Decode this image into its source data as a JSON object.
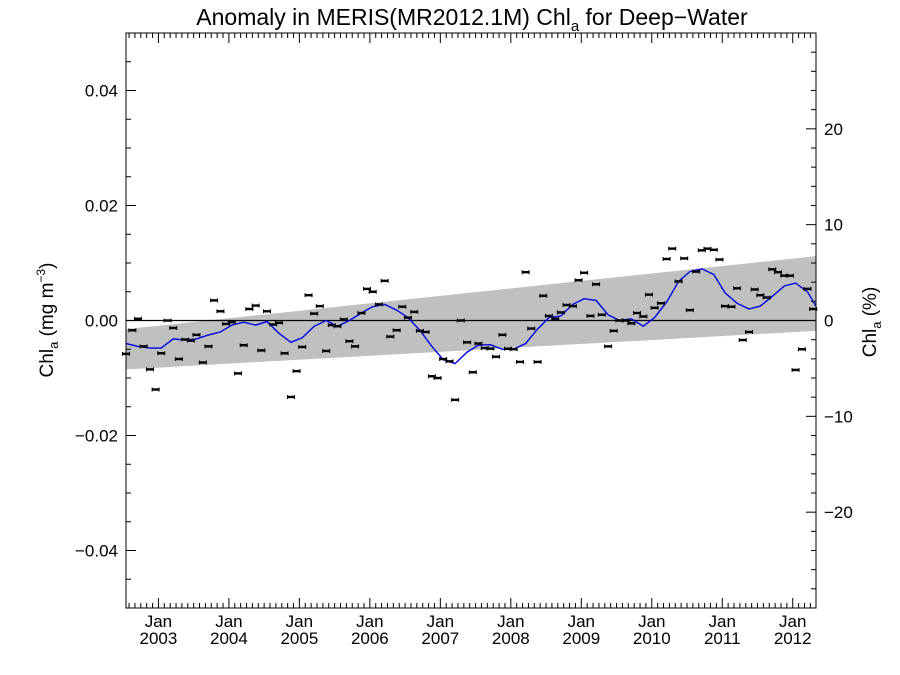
{
  "chart_data": {
    "type": "scatter",
    "title_main": "Anomaly in MERIS(MR2012.1M) Chl",
    "title_sub": "a",
    "title_tail": " for Deep−Water",
    "ylabel_left": {
      "main": "Chl",
      "sub": "a",
      "tail": " (mg m",
      "sup": "−3",
      "close": ")"
    },
    "ylabel_right": {
      "main": "Chl",
      "sub": "a",
      "tail": " (%)"
    },
    "x_tick_top": [
      "Jan",
      "Jan",
      "Jan",
      "Jan",
      "Jan",
      "Jan",
      "Jan",
      "Jan",
      "Jan",
      "Jan"
    ],
    "x_tick_bottom": [
      "2003",
      "2004",
      "2005",
      "2006",
      "2007",
      "2008",
      "2009",
      "2010",
      "2011",
      "2012"
    ],
    "x_tick_years": [
      2003,
      2004,
      2005,
      2006,
      2007,
      2008,
      2009,
      2010,
      2011,
      2012
    ],
    "xlim": [
      2002.54,
      2012.33
    ],
    "ylim_left": [
      -0.05,
      0.05
    ],
    "yticks_left": [
      0.04,
      0.02,
      0.0,
      -0.02,
      -0.04
    ],
    "ytick_labels_left": [
      "0.04",
      "0.02",
      "0.00",
      "−0.02",
      "−0.04"
    ],
    "ylim_right": [
      -30,
      30
    ],
    "yticks_right": [
      20,
      10,
      0,
      -10,
      -20
    ],
    "ytick_labels_right": [
      "20",
      "10",
      "0",
      "−10",
      "−20"
    ],
    "zero_line": 0,
    "trend_band": {
      "x": [
        2002.54,
        2012.33
      ],
      "upper": [
        -0.0015,
        0.0112
      ],
      "lower": [
        -0.0085,
        -0.0018
      ]
    },
    "points": {
      "x": [
        2002.54,
        2002.63,
        2002.71,
        2002.79,
        2002.88,
        2002.96,
        2003.04,
        2003.13,
        2003.21,
        2003.29,
        2003.38,
        2003.46,
        2003.54,
        2003.63,
        2003.71,
        2003.79,
        2003.88,
        2003.96,
        2004.04,
        2004.13,
        2004.21,
        2004.29,
        2004.38,
        2004.46,
        2004.54,
        2004.63,
        2004.71,
        2004.79,
        2004.88,
        2004.96,
        2005.04,
        2005.13,
        2005.21,
        2005.29,
        2005.38,
        2005.46,
        2005.54,
        2005.63,
        2005.71,
        2005.79,
        2005.88,
        2005.96,
        2006.04,
        2006.13,
        2006.21,
        2006.29,
        2006.38,
        2006.46,
        2006.54,
        2006.63,
        2006.71,
        2006.79,
        2006.88,
        2006.96,
        2007.04,
        2007.13,
        2007.21,
        2007.29,
        2007.38,
        2007.46,
        2007.54,
        2007.63,
        2007.71,
        2007.79,
        2007.88,
        2007.96,
        2008.04,
        2008.13,
        2008.21,
        2008.29,
        2008.38,
        2008.46,
        2008.54,
        2008.63,
        2008.71,
        2008.79,
        2008.88,
        2008.96,
        2009.04,
        2009.13,
        2009.21,
        2009.29,
        2009.38,
        2009.46,
        2009.54,
        2009.63,
        2009.71,
        2009.79,
        2009.88,
        2009.96,
        2010.04,
        2010.13,
        2010.21,
        2010.29,
        2010.38,
        2010.46,
        2010.54,
        2010.63,
        2010.71,
        2010.79,
        2010.88,
        2010.96,
        2011.04,
        2011.13,
        2011.21,
        2011.29,
        2011.38,
        2011.46,
        2011.54,
        2011.63,
        2011.71,
        2011.79,
        2011.88,
        2011.96,
        2012.04,
        2012.13,
        2012.21,
        2012.29
      ],
      "y": [
        -0.0058,
        -0.0017,
        0.0003,
        -0.0045,
        -0.0085,
        -0.012,
        -0.0057,
        0.0,
        -0.0013,
        -0.0067,
        -0.0033,
        -0.0035,
        -0.0025,
        -0.0073,
        -0.0045,
        0.0035,
        0.0016,
        -0.0006,
        -0.0003,
        -0.0092,
        -0.0043,
        0.002,
        0.0026,
        -0.0052,
        0.0016,
        -0.0007,
        -0.0004,
        -0.0057,
        -0.0133,
        -0.0088,
        -0.0046,
        0.0044,
        0.0012,
        0.0025,
        -0.0053,
        -0.0008,
        -0.001,
        0.0002,
        -0.0036,
        -0.0045,
        0.0013,
        0.0055,
        0.005,
        0.0028,
        0.0069,
        -0.0028,
        -0.0017,
        0.0024,
        0.0005,
        0.0015,
        -0.0018,
        -0.002,
        -0.0097,
        -0.01,
        -0.0067,
        -0.0071,
        -0.0138,
        0.0,
        -0.0038,
        -0.009,
        -0.004,
        -0.0048,
        -0.0049,
        -0.0063,
        -0.0025,
        -0.0049,
        -0.005,
        -0.0072,
        0.0084,
        -0.0014,
        -0.0072,
        0.0043,
        0.0008,
        0.0003,
        0.0014,
        0.0027,
        0.0025,
        0.007,
        0.0083,
        0.0008,
        0.0063,
        0.001,
        -0.0045,
        -0.0018,
        0.0,
        0.0,
        -0.0005,
        0.0013,
        0.0007,
        0.0045,
        0.0022,
        0.003,
        0.0107,
        0.0125,
        0.0068,
        0.0108,
        0.0018,
        0.0085,
        0.0122,
        0.0125,
        0.0123,
        0.0106,
        0.0025,
        0.0024,
        0.0056,
        -0.0034,
        -0.002,
        0.0054,
        0.0044,
        0.004,
        0.0089,
        0.0084,
        0.0078,
        0.0078,
        -0.0086,
        -0.005,
        0.0055,
        0.002
      ]
    },
    "smooth_line": {
      "x": [
        2002.54,
        2002.71,
        2002.88,
        2003.04,
        2003.21,
        2003.38,
        2003.54,
        2003.71,
        2003.88,
        2004.04,
        2004.21,
        2004.38,
        2004.54,
        2004.71,
        2004.88,
        2005.04,
        2005.21,
        2005.38,
        2005.54,
        2005.71,
        2005.88,
        2006.04,
        2006.21,
        2006.38,
        2006.54,
        2006.71,
        2006.88,
        2007.04,
        2007.21,
        2007.38,
        2007.54,
        2007.71,
        2007.88,
        2008.04,
        2008.21,
        2008.38,
        2008.54,
        2008.71,
        2008.88,
        2009.04,
        2009.21,
        2009.38,
        2009.54,
        2009.71,
        2009.88,
        2010.04,
        2010.21,
        2010.38,
        2010.54,
        2010.71,
        2010.88,
        2011.04,
        2011.21,
        2011.38,
        2011.54,
        2011.71,
        2011.88,
        2012.04,
        2012.21,
        2012.33
      ],
      "y": [
        -0.004,
        -0.0045,
        -0.0048,
        -0.0048,
        -0.0032,
        -0.0034,
        -0.0032,
        -0.0025,
        -0.002,
        -0.0008,
        -0.0003,
        -0.0008,
        -0.0002,
        -0.0022,
        -0.0038,
        -0.003,
        -0.001,
        0.0,
        -0.001,
        0.0,
        0.0013,
        0.0024,
        0.0028,
        0.0018,
        0.0005,
        -0.0017,
        -0.0045,
        -0.0068,
        -0.0075,
        -0.0055,
        -0.0043,
        -0.0042,
        -0.005,
        -0.005,
        -0.004,
        -0.0015,
        0.0005,
        0.0008,
        0.0028,
        0.0038,
        0.0035,
        0.001,
        0.0,
        0.0003,
        -0.001,
        0.0005,
        0.0032,
        0.0068,
        0.0085,
        0.009,
        0.008,
        0.0048,
        0.003,
        0.002,
        0.0025,
        0.0042,
        0.006,
        0.0065,
        0.005,
        0.0025
      ]
    },
    "colors": {
      "band": "#c0c0c0",
      "line": "#0000e6",
      "points": "#000000",
      "axes": "#000000"
    },
    "grid": false
  }
}
